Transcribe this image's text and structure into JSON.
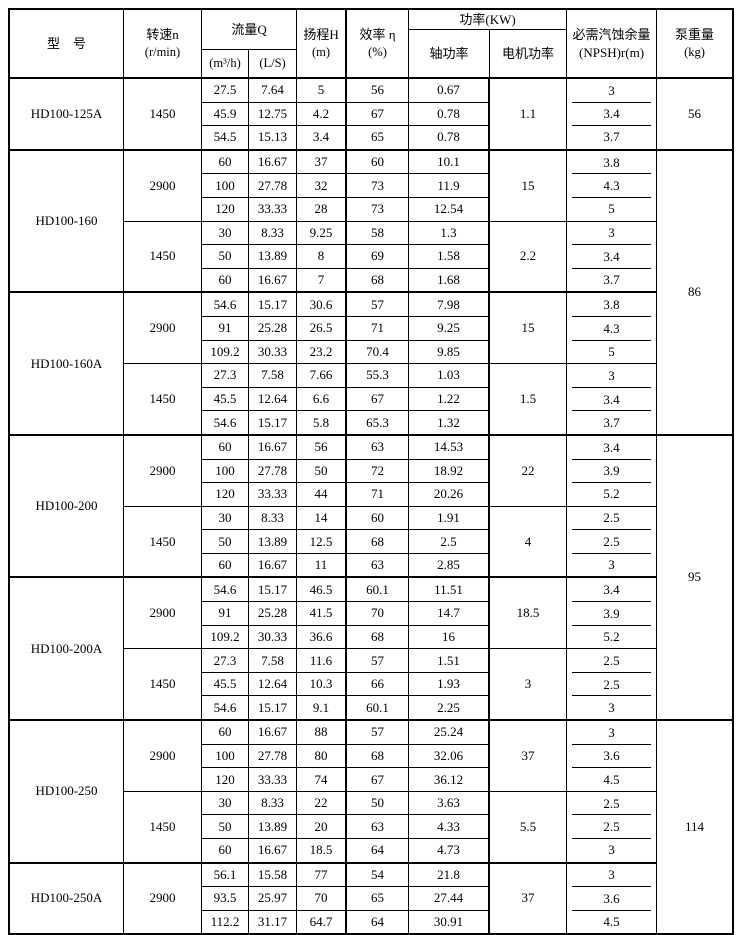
{
  "header": {
    "model": "型　号",
    "speed": [
      "转速n",
      "(r/min)"
    ],
    "flow": "流量Q",
    "flow_subs": [
      "(m³/h)",
      "(L/S)"
    ],
    "head": [
      "扬程H",
      "(m)"
    ],
    "efficiency": [
      "效率 η",
      "(%)"
    ],
    "power": "功率(KW)",
    "power_subs": [
      "轴功率",
      "电机功率"
    ],
    "npsh": [
      "必需汽蚀余量",
      "(NPSH)r(m)"
    ],
    "weight": [
      "泵重量",
      "(kg)"
    ]
  },
  "sections": [
    {
      "model": "HD100-125A",
      "groups": [
        {
          "speed": "1450",
          "motor_kw": "1.1",
          "rows": [
            [
              "27.5",
              "7.64",
              "5",
              "56",
              "0.67",
              "3"
            ],
            [
              "45.9",
              "12.75",
              "4.2",
              "67",
              "0.78",
              "3.4"
            ],
            [
              "54.5",
              "15.13",
              "3.4",
              "65",
              "0.78",
              "3.7"
            ]
          ]
        }
      ]
    },
    {
      "model": "HD100-160",
      "groups": [
        {
          "speed": "2900",
          "motor_kw": "15",
          "rows": [
            [
              "60",
              "16.67",
              "37",
              "60",
              "10.1",
              "3.8"
            ],
            [
              "100",
              "27.78",
              "32",
              "73",
              "11.9",
              "4.3"
            ],
            [
              "120",
              "33.33",
              "28",
              "73",
              "12.54",
              "5"
            ]
          ]
        },
        {
          "speed": "1450",
          "motor_kw": "2.2",
          "rows": [
            [
              "30",
              "8.33",
              "9.25",
              "58",
              "1.3",
              "3"
            ],
            [
              "50",
              "13.89",
              "8",
              "69",
              "1.58",
              "3.4"
            ],
            [
              "60",
              "16.67",
              "7",
              "68",
              "1.68",
              "3.7"
            ]
          ]
        }
      ]
    },
    {
      "model": "HD100-160A",
      "groups": [
        {
          "speed": "2900",
          "motor_kw": "15",
          "rows": [
            [
              "54.6",
              "15.17",
              "30.6",
              "57",
              "7.98",
              "3.8"
            ],
            [
              "91",
              "25.28",
              "26.5",
              "71",
              "9.25",
              "4.3"
            ],
            [
              "109.2",
              "30.33",
              "23.2",
              "70.4",
              "9.85",
              "5"
            ]
          ]
        },
        {
          "speed": "1450",
          "motor_kw": "1.5",
          "rows": [
            [
              "27.3",
              "7.58",
              "7.66",
              "55.3",
              "1.03",
              "3"
            ],
            [
              "45.5",
              "12.64",
              "6.6",
              "67",
              "1.22",
              "3.4"
            ],
            [
              "54.6",
              "15.17",
              "5.8",
              "65.3",
              "1.32",
              "3.7"
            ]
          ]
        }
      ]
    },
    {
      "model": "HD100-200",
      "groups": [
        {
          "speed": "2900",
          "motor_kw": "22",
          "rows": [
            [
              "60",
              "16.67",
              "56",
              "63",
              "14.53",
              "3.4"
            ],
            [
              "100",
              "27.78",
              "50",
              "72",
              "18.92",
              "3.9"
            ],
            [
              "120",
              "33.33",
              "44",
              "71",
              "20.26",
              "5.2"
            ]
          ]
        },
        {
          "speed": "1450",
          "motor_kw": "4",
          "rows": [
            [
              "30",
              "8.33",
              "14",
              "60",
              "1.91",
              "2.5"
            ],
            [
              "50",
              "13.89",
              "12.5",
              "68",
              "2.5",
              "2.5"
            ],
            [
              "60",
              "16.67",
              "11",
              "63",
              "2.85",
              "3"
            ]
          ]
        }
      ]
    },
    {
      "model": "HD100-200A",
      "groups": [
        {
          "speed": "2900",
          "motor_kw": "18.5",
          "rows": [
            [
              "54.6",
              "15.17",
              "46.5",
              "60.1",
              "11.51",
              "3.4"
            ],
            [
              "91",
              "25.28",
              "41.5",
              "70",
              "14.7",
              "3.9"
            ],
            [
              "109.2",
              "30.33",
              "36.6",
              "68",
              "16",
              "5.2"
            ]
          ]
        },
        {
          "speed": "1450",
          "motor_kw": "3",
          "rows": [
            [
              "27.3",
              "7.58",
              "11.6",
              "57",
              "1.51",
              "2.5"
            ],
            [
              "45.5",
              "12.64",
              "10.3",
              "66",
              "1.93",
              "2.5"
            ],
            [
              "54.6",
              "15.17",
              "9.1",
              "60.1",
              "2.25",
              "3"
            ]
          ]
        }
      ]
    },
    {
      "model": "HD100-250",
      "groups": [
        {
          "speed": "2900",
          "motor_kw": "37",
          "rows": [
            [
              "60",
              "16.67",
              "88",
              "57",
              "25.24",
              "3"
            ],
            [
              "100",
              "27.78",
              "80",
              "68",
              "32.06",
              "3.6"
            ],
            [
              "120",
              "33.33",
              "74",
              "67",
              "36.12",
              "4.5"
            ]
          ]
        },
        {
          "speed": "1450",
          "motor_kw": "5.5",
          "rows": [
            [
              "30",
              "8.33",
              "22",
              "50",
              "3.63",
              "2.5"
            ],
            [
              "50",
              "13.89",
              "20",
              "63",
              "4.33",
              "2.5"
            ],
            [
              "60",
              "16.67",
              "18.5",
              "64",
              "4.73",
              "3"
            ]
          ]
        }
      ]
    },
    {
      "model": "HD100-250A",
      "groups": [
        {
          "speed": "2900",
          "motor_kw": "37",
          "rows": [
            [
              "56.1",
              "15.58",
              "77",
              "54",
              "21.8",
              "3"
            ],
            [
              "93.5",
              "25.97",
              "70",
              "65",
              "27.44",
              "3.6"
            ],
            [
              "112.2",
              "31.17",
              "64.7",
              "64",
              "30.91",
              "4.5"
            ]
          ]
        }
      ]
    }
  ],
  "weights": [
    {
      "value": "56",
      "span_sections": 1
    },
    {
      "value": "86",
      "span_sections": 2
    },
    {
      "value": "95",
      "span_sections": 2
    },
    {
      "value": "114",
      "span_sections": 2
    }
  ]
}
